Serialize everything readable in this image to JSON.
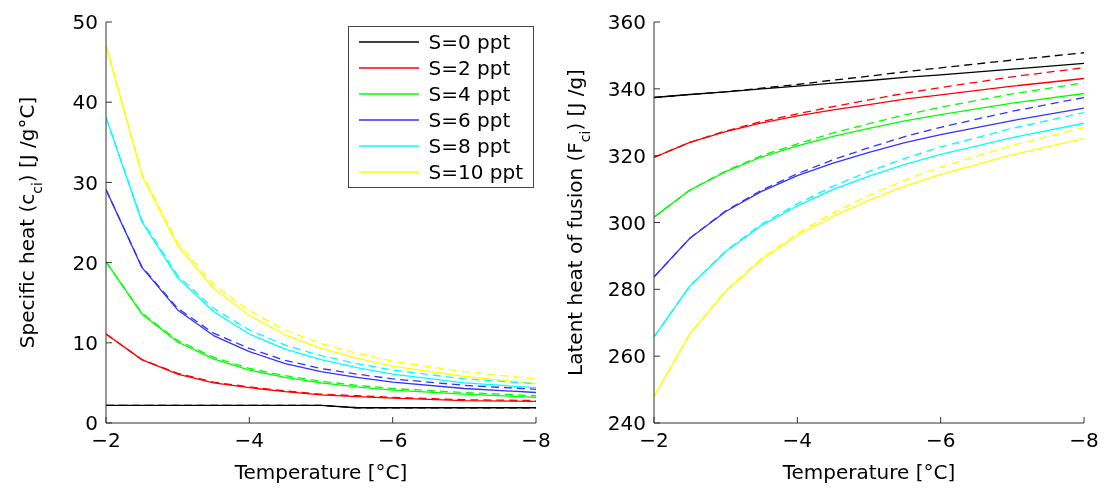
{
  "chart_data": [
    {
      "type": "line",
      "xlabel": "Temperature [°C]",
      "ylabel": "Specific heat (c$_{ci}$) [J /g°C]",
      "x": [
        -2,
        -2.5,
        -3,
        -3.5,
        -4,
        -4.5,
        -5,
        -5.5,
        -6,
        -7,
        -8
      ],
      "xlim": [
        -2,
        -8
      ],
      "xticks": [
        -2,
        -4,
        -6,
        -8
      ],
      "ylim": [
        0,
        50
      ],
      "yticks": [
        0,
        10,
        20,
        30,
        40,
        50
      ],
      "legend": "top right",
      "series": [
        {
          "name": "S=0 ppt",
          "color": "#000000",
          "values": [
            2.2,
            2.2,
            2.2,
            2.2,
            2.2,
            2.2,
            2.2,
            1.9,
            1.9,
            1.9,
            1.9
          ]
        },
        {
          "name": "S=2 ppt",
          "color": "#ff0000",
          "values": [
            11.1,
            7.9,
            6.1,
            5.0,
            4.4,
            3.9,
            3.5,
            3.3,
            3.1,
            2.8,
            2.7
          ]
        },
        {
          "name": "S=4 ppt",
          "color": "#00ff00",
          "values": [
            20.1,
            13.6,
            10.1,
            8.0,
            6.6,
            5.7,
            5.0,
            4.5,
            4.1,
            3.6,
            3.2
          ]
        },
        {
          "name": "S=6 ppt",
          "color": "#3333ff",
          "values": [
            29.1,
            19.4,
            14.1,
            10.9,
            8.9,
            7.4,
            6.4,
            5.7,
            5.1,
            4.3,
            3.8
          ]
        },
        {
          "name": "S=8 ppt",
          "color": "#00ffff",
          "values": [
            38.1,
            25.1,
            18.1,
            13.9,
            11.1,
            9.2,
            7.9,
            6.9,
            6.1,
            5.0,
            4.4
          ]
        },
        {
          "name": "S=10 ppt",
          "color": "#ffff00",
          "values": [
            47.1,
            30.9,
            22.1,
            16.8,
            13.4,
            11.0,
            9.3,
            8.1,
            7.1,
            5.8,
            4.9
          ]
        },
        {
          "color": "#000000",
          "line_style": "dashed",
          "values": [
            2.2,
            2.2,
            2.2,
            2.2,
            2.2,
            2.2,
            2.2,
            1.9,
            1.9,
            1.9,
            1.9
          ]
        },
        {
          "color": "#ff0000",
          "line_style": "dashed",
          "values": [
            11.1,
            7.9,
            6.2,
            5.1,
            4.5,
            4.0,
            3.6,
            3.4,
            3.2,
            2.9,
            2.8
          ]
        },
        {
          "color": "#00ff00",
          "line_style": "dashed",
          "values": [
            20.1,
            13.7,
            10.3,
            8.2,
            6.8,
            5.9,
            5.2,
            4.7,
            4.3,
            3.8,
            3.4
          ]
        },
        {
          "color": "#3333ff",
          "line_style": "dashed",
          "values": [
            29.1,
            19.5,
            14.3,
            11.2,
            9.3,
            7.8,
            6.8,
            6.1,
            5.5,
            4.7,
            4.2
          ]
        },
        {
          "color": "#00ffff",
          "line_style": "dashed",
          "values": [
            38.1,
            25.3,
            18.4,
            14.3,
            11.6,
            9.7,
            8.4,
            7.4,
            6.6,
            5.5,
            4.9
          ]
        },
        {
          "color": "#ffff00",
          "line_style": "dashed",
          "values": [
            47.1,
            31.1,
            22.5,
            17.3,
            14.0,
            11.6,
            9.9,
            8.7,
            7.7,
            6.4,
            5.5
          ]
        }
      ]
    },
    {
      "type": "line",
      "xlabel": "Temperature [°C]",
      "ylabel": "Latent heat of fusion (F$_{ci}$) [J /g]",
      "x": [
        -2,
        -2.5,
        -3,
        -3.5,
        -4,
        -4.5,
        -5,
        -5.5,
        -6,
        -7,
        -8
      ],
      "xlim": [
        -2,
        -8
      ],
      "xticks": [
        -2,
        -4,
        -6,
        -8
      ],
      "ylim": [
        240,
        360
      ],
      "yticks": [
        240,
        260,
        280,
        300,
        320,
        340,
        360
      ],
      "series": [
        {
          "color": "#000000",
          "values": [
            337.4,
            338.3,
            339.1,
            340.0,
            340.8,
            341.7,
            342.5,
            343.4,
            344.2,
            345.9,
            347.6
          ]
        },
        {
          "color": "#ff0000",
          "values": [
            319.5,
            324.0,
            327.2,
            329.8,
            331.9,
            333.7,
            335.3,
            336.9,
            338.2,
            340.8,
            343.1
          ]
        },
        {
          "color": "#00ff00",
          "values": [
            301.6,
            309.7,
            315.2,
            319.6,
            322.9,
            325.8,
            328.2,
            330.4,
            332.3,
            335.7,
            338.6
          ]
        },
        {
          "color": "#3333ff",
          "values": [
            283.7,
            295.3,
            303.3,
            309.3,
            314.0,
            317.8,
            321.0,
            323.9,
            326.3,
            330.5,
            334.2
          ]
        },
        {
          "color": "#00ffff",
          "values": [
            265.8,
            281.0,
            291.3,
            299.1,
            305.0,
            309.9,
            313.9,
            317.4,
            320.4,
            325.4,
            329.7
          ]
        },
        {
          "color": "#ffff00",
          "values": [
            247.9,
            266.7,
            279.4,
            288.9,
            296.1,
            301.9,
            306.7,
            310.9,
            314.4,
            320.3,
            325.2
          ]
        },
        {
          "color": "#000000",
          "line_style": "dashed",
          "values": [
            337.4,
            338.3,
            339.1,
            340.2,
            341.3,
            342.6,
            343.8,
            345.1,
            346.3,
            348.6,
            350.8
          ]
        },
        {
          "color": "#ff0000",
          "line_style": "dashed",
          "values": [
            319.5,
            324.0,
            327.4,
            330.2,
            332.5,
            334.7,
            336.7,
            338.7,
            340.4,
            343.6,
            346.3
          ]
        },
        {
          "color": "#00ff00",
          "line_style": "dashed",
          "values": [
            301.6,
            309.7,
            315.4,
            320.0,
            323.5,
            326.8,
            329.6,
            332.2,
            334.5,
            338.5,
            341.8
          ]
        },
        {
          "color": "#3333ff",
          "line_style": "dashed",
          "values": [
            283.7,
            295.3,
            303.5,
            309.7,
            314.6,
            318.8,
            322.4,
            325.7,
            328.5,
            333.3,
            337.4
          ]
        },
        {
          "color": "#00ffff",
          "line_style": "dashed",
          "values": [
            265.8,
            281.0,
            291.5,
            299.5,
            305.6,
            310.9,
            315.3,
            319.2,
            322.6,
            328.2,
            332.9
          ]
        },
        {
          "color": "#ffff00",
          "line_style": "dashed",
          "values": [
            247.9,
            266.7,
            279.6,
            289.3,
            296.7,
            302.9,
            308.1,
            312.7,
            316.6,
            323.1,
            328.4
          ]
        }
      ]
    }
  ]
}
